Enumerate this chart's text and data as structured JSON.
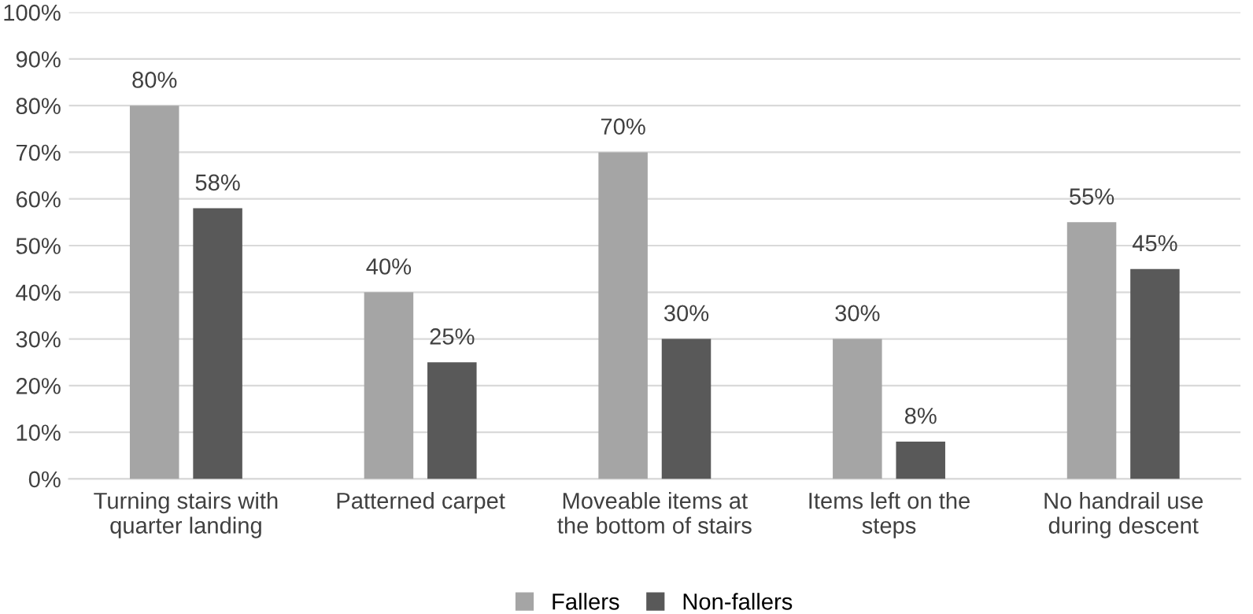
{
  "chart_data": {
    "type": "bar",
    "categories": [
      "Turning stairs with\nquarter landing",
      "Patterned carpet",
      "Moveable items at\nthe bottom of stairs",
      "Items left on the\nsteps",
      "No handrail use\nduring descent"
    ],
    "series": [
      {
        "name": "Fallers",
        "color": "#a5a5a5",
        "values": [
          80,
          40,
          70,
          30,
          55
        ],
        "value_labels": [
          "80%",
          "40%",
          "70%",
          "30%",
          "55%"
        ]
      },
      {
        "name": "Non-fallers",
        "color": "#595959",
        "values": [
          58,
          25,
          30,
          8,
          45
        ],
        "value_labels": [
          "58%",
          "25%",
          "30%",
          "8%",
          "45%"
        ]
      }
    ],
    "ylim": [
      0,
      100
    ],
    "yticks": [
      {
        "value": 0,
        "label": "0%"
      },
      {
        "value": 10,
        "label": "10%"
      },
      {
        "value": 20,
        "label": "20%"
      },
      {
        "value": 30,
        "label": "30%"
      },
      {
        "value": 40,
        "label": "40%"
      },
      {
        "value": 50,
        "label": "50%"
      },
      {
        "value": 60,
        "label": "60%"
      },
      {
        "value": 70,
        "label": "70%"
      },
      {
        "value": 80,
        "label": "80%"
      },
      {
        "value": 90,
        "label": "90%"
      },
      {
        "value": 100,
        "label": "100%"
      }
    ],
    "grid": "y",
    "legend": "bottom"
  }
}
